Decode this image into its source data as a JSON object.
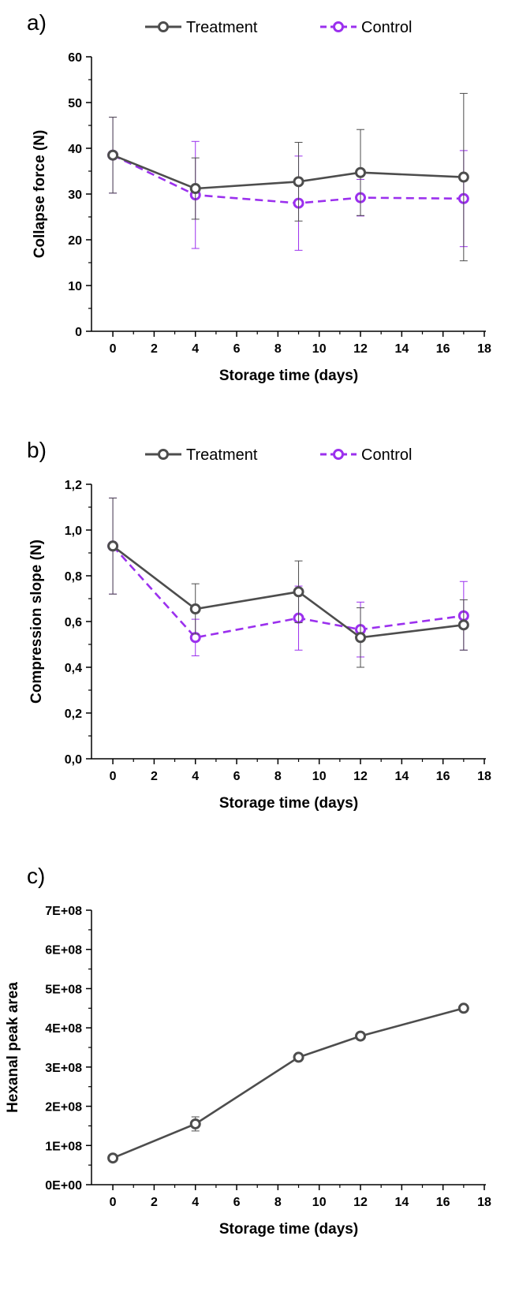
{
  "colors": {
    "treatment": "#4d4d4d",
    "control": "#9b30ee",
    "axis": "#000000"
  },
  "chart_data": [
    {
      "type": "line",
      "panel_label": "a)",
      "xlabel": "Storage time (days)",
      "ylabel": "Collapse force (N)",
      "xlim": [
        -0.5,
        18
      ],
      "ylim": [
        0,
        60
      ],
      "x_ticks": [
        0,
        2,
        4,
        6,
        8,
        10,
        12,
        14,
        16,
        18
      ],
      "x_tick_labels": [
        "0",
        "2",
        "4",
        "6",
        "8",
        "10",
        "12",
        "14",
        "16",
        "18"
      ],
      "y_ticks": [
        0,
        10,
        20,
        30,
        40,
        50,
        60
      ],
      "y_tick_labels": [
        "0",
        "10",
        "20",
        "30",
        "40",
        "50",
        "60"
      ],
      "legend": {
        "placement": "top",
        "entries": [
          "Treatment",
          "Control"
        ]
      },
      "series": [
        {
          "name": "Treatment",
          "style": "solid",
          "x": [
            0,
            4,
            9,
            12,
            17
          ],
          "y": [
            38.5,
            31.2,
            32.7,
            34.7,
            33.7
          ],
          "err": [
            8.3,
            6.7,
            8.6,
            9.4,
            18.3
          ]
        },
        {
          "name": "Control",
          "style": "dashed",
          "x": [
            0,
            4,
            9,
            12,
            17
          ],
          "y": [
            38.5,
            29.8,
            28.0,
            29.2,
            29.0
          ],
          "err": [
            8.3,
            11.7,
            10.3,
            4.0,
            10.5
          ]
        }
      ]
    },
    {
      "type": "line",
      "panel_label": "b)",
      "xlabel": "Storage time (days)",
      "ylabel": "Compression slope (N)",
      "xlim": [
        -0.5,
        18
      ],
      "ylim": [
        0,
        1.2
      ],
      "x_ticks": [
        0,
        2,
        4,
        6,
        8,
        10,
        12,
        14,
        16,
        18
      ],
      "x_tick_labels": [
        "0",
        "2",
        "4",
        "6",
        "8",
        "10",
        "12",
        "14",
        "16",
        "18"
      ],
      "y_ticks": [
        0,
        0.2,
        0.4,
        0.6,
        0.8,
        1.0,
        1.2
      ],
      "y_tick_labels": [
        "0,0",
        "0,2",
        "0,4",
        "0,6",
        "0,8",
        "1,0",
        "1,2"
      ],
      "legend": {
        "placement": "top",
        "entries": [
          "Treatment",
          "Control"
        ]
      },
      "series": [
        {
          "name": "Treatment",
          "style": "solid",
          "x": [
            0,
            4,
            9,
            12,
            17
          ],
          "y": [
            0.93,
            0.655,
            0.73,
            0.53,
            0.585
          ],
          "err": [
            0.21,
            0.11,
            0.135,
            0.13,
            0.11
          ]
        },
        {
          "name": "Control",
          "style": "dashed",
          "x": [
            0,
            4,
            9,
            12,
            17
          ],
          "y": [
            0.93,
            0.53,
            0.615,
            0.565,
            0.625
          ],
          "err": [
            0.21,
            0.08,
            0.14,
            0.12,
            0.15
          ]
        }
      ]
    },
    {
      "type": "line",
      "panel_label": "c)",
      "xlabel": "Storage time (days)",
      "ylabel": "Hexanal peak area",
      "xlim": [
        -0.5,
        18
      ],
      "ylim": [
        0,
        700000000
      ],
      "x_ticks": [
        0,
        2,
        4,
        6,
        8,
        10,
        12,
        14,
        16,
        18
      ],
      "x_tick_labels": [
        "0",
        "2",
        "4",
        "6",
        "8",
        "10",
        "12",
        "14",
        "16",
        "18"
      ],
      "y_ticks": [
        0,
        100000000,
        200000000,
        300000000,
        400000000,
        500000000,
        600000000,
        700000000
      ],
      "y_tick_labels": [
        "0E+00",
        "1E+08",
        "2E+08",
        "3E+08",
        "4E+08",
        "5E+08",
        "6E+08",
        "7E+08"
      ],
      "series": [
        {
          "name": "",
          "style": "solid",
          "x": [
            0,
            4,
            9,
            12,
            17
          ],
          "y": [
            68000000,
            155000000,
            325000000,
            379000000,
            450000000
          ],
          "err": [
            4000000,
            18000000,
            3000000,
            3000000,
            3000000
          ]
        }
      ]
    }
  ]
}
